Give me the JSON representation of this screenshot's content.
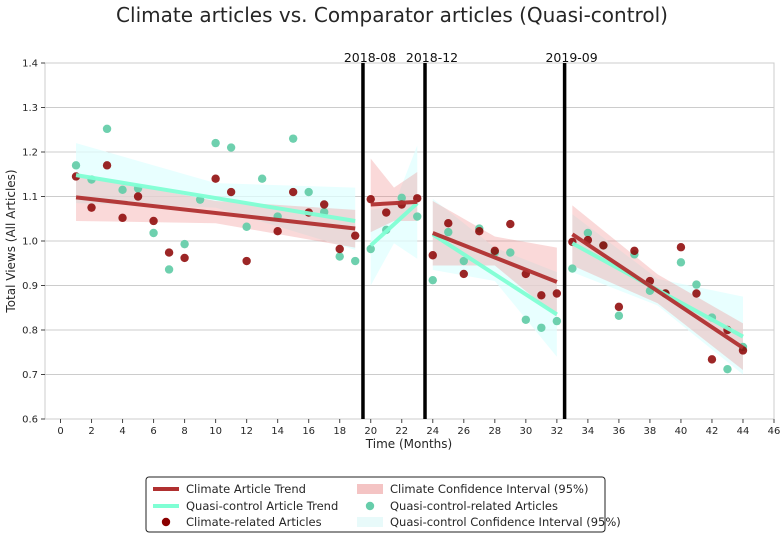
{
  "chart_data": {
    "type": "scatter",
    "title": "Climate articles vs. Comparator articles (Quasi-control)",
    "xlabel": "Time (Months)",
    "ylabel": "Total Views (All Articles)",
    "xlim": [
      -1,
      46
    ],
    "ylim": [
      0.6,
      1.4
    ],
    "xticks": [
      0,
      2,
      4,
      6,
      8,
      10,
      12,
      14,
      16,
      18,
      20,
      22,
      24,
      26,
      28,
      30,
      32,
      34,
      36,
      38,
      40,
      42,
      44,
      46
    ],
    "yticks": [
      0.6,
      0.7,
      0.8,
      0.9,
      1.0,
      1.1,
      1.2,
      1.3,
      1.4
    ],
    "ytick_labels": [
      "0.6",
      "0.7",
      "0.8",
      "0.9",
      "1.0",
      "1.1",
      "1.2",
      "1.3",
      "1.4"
    ],
    "grid": true,
    "legend_placement": "below",
    "events": [
      {
        "x": 19.5,
        "label": "2018-08"
      },
      {
        "x": 23.5,
        "label": "2018-12"
      },
      {
        "x": 32.5,
        "label": "2019-09"
      }
    ],
    "series": [
      {
        "name": "Climate-related Articles",
        "kind": "points",
        "color": "#8b0000",
        "x": [
          1,
          2,
          3,
          4,
          5,
          6,
          7,
          8,
          10,
          11,
          12,
          14,
          15,
          16,
          17,
          18,
          19,
          20,
          21,
          22,
          23,
          24,
          25,
          26,
          27,
          28,
          29,
          30,
          31,
          32,
          33,
          34,
          35,
          36,
          37,
          38,
          39,
          40,
          41,
          42,
          43,
          44
        ],
        "y": [
          1.145,
          1.075,
          1.17,
          1.052,
          1.1,
          1.045,
          0.974,
          0.962,
          1.14,
          1.11,
          0.955,
          1.022,
          1.11,
          1.064,
          1.082,
          0.982,
          1.012,
          1.094,
          1.064,
          1.082,
          1.096,
          0.968,
          1.04,
          0.926,
          1.022,
          0.978,
          1.038,
          0.926,
          0.878,
          0.882,
          0.998,
          1.002,
          0.99,
          0.852,
          0.978,
          0.91,
          0.882,
          0.986,
          0.882,
          0.734,
          0.8,
          0.754
        ]
      },
      {
        "name": "Quasi-control-related Articles",
        "kind": "points",
        "color": "#66cdaa",
        "x": [
          1,
          2,
          3,
          4,
          5,
          6,
          7,
          8,
          9,
          10,
          11,
          12,
          13,
          14,
          15,
          16,
          17,
          18,
          19,
          20,
          21,
          22,
          23,
          24,
          25,
          26,
          27,
          28,
          29,
          30,
          31,
          32,
          33,
          34,
          35,
          36,
          37,
          38,
          39,
          40,
          41,
          42,
          43,
          44
        ],
        "y": [
          1.17,
          1.138,
          1.252,
          1.115,
          1.118,
          1.018,
          0.936,
          0.993,
          1.093,
          1.22,
          1.21,
          1.032,
          1.14,
          1.055,
          1.23,
          1.11,
          1.065,
          0.965,
          0.955,
          0.982,
          1.025,
          1.097,
          1.055,
          0.912,
          1.02,
          0.955,
          1.028,
          0.974,
          0.974,
          0.823,
          0.805,
          0.82,
          0.938,
          1.018,
          0.99,
          0.832,
          0.97,
          0.888,
          0.882,
          0.952,
          0.902,
          0.828,
          0.712,
          0.762
        ]
      },
      {
        "name": "Climate Article Trend",
        "kind": "trend",
        "color": "#b03030",
        "segments": [
          {
            "x": [
              1,
              19
            ],
            "y": [
              1.098,
              1.028
            ]
          },
          {
            "x": [
              20,
              23
            ],
            "y": [
              1.082,
              1.088
            ]
          },
          {
            "x": [
              24,
              32
            ],
            "y": [
              1.018,
              0.908
            ]
          },
          {
            "x": [
              33,
              44
            ],
            "y": [
              1.015,
              0.76
            ]
          }
        ]
      },
      {
        "name": "Quasi-control Article Trend",
        "kind": "trend",
        "color": "#7fffd4",
        "segments": [
          {
            "x": [
              1,
              19
            ],
            "y": [
              1.148,
              1.045
            ]
          },
          {
            "x": [
              20,
              23
            ],
            "y": [
              0.99,
              1.085
            ]
          },
          {
            "x": [
              24,
              32
            ],
            "y": [
              1.015,
              0.835
            ]
          },
          {
            "x": [
              33,
              44
            ],
            "y": [
              0.995,
              0.785
            ]
          }
        ]
      },
      {
        "name": "Climate Confidence Interval (95%)",
        "kind": "band",
        "color": "#f08080",
        "segments": [
          {
            "x": [
              1,
              10,
              19
            ],
            "lower": [
              1.045,
              1.04,
              0.985
            ],
            "upper": [
              1.15,
              1.09,
              1.07
            ]
          },
          {
            "x": [
              20,
              21.5,
              23
            ],
            "lower": [
              1.02,
              1.045,
              1.045
            ],
            "upper": [
              1.185,
              1.12,
              1.155
            ]
          },
          {
            "x": [
              24,
              28,
              32
            ],
            "lower": [
              0.945,
              0.945,
              0.83
            ],
            "upper": [
              1.09,
              1.01,
              0.985
            ]
          },
          {
            "x": [
              33,
              38.5,
              44
            ],
            "lower": [
              0.945,
              0.86,
              0.71
            ],
            "upper": [
              1.08,
              0.925,
              0.815
            ]
          }
        ]
      },
      {
        "name": "Quasi-control Confidence Interval (95%)",
        "kind": "band",
        "color": "#e0ffff",
        "segments": [
          {
            "x": [
              1,
              10,
              19
            ],
            "lower": [
              1.085,
              1.075,
              0.98
            ],
            "upper": [
              1.22,
              1.13,
              1.12
            ]
          },
          {
            "x": [
              20,
              21.5,
              23
            ],
            "lower": [
              0.9,
              0.995,
              0.96
            ],
            "upper": [
              1.07,
              1.08,
              1.215
            ]
          },
          {
            "x": [
              24,
              28,
              32
            ],
            "lower": [
              0.935,
              0.91,
              0.74
            ],
            "upper": [
              1.095,
              0.985,
              0.93
            ]
          },
          {
            "x": [
              33,
              38.5,
              44
            ],
            "lower": [
              0.93,
              0.855,
              0.7
            ],
            "upper": [
              1.06,
              0.915,
              0.875
            ]
          }
        ]
      }
    ]
  },
  "legend": {
    "items": [
      {
        "label": "Climate Article Trend",
        "kind": "line",
        "color": "#b03030"
      },
      {
        "label": "Climate Confidence Interval (95%)",
        "kind": "patch",
        "color": "#f4c4c4"
      },
      {
        "label": "Quasi-control Article Trend",
        "kind": "line",
        "color": "#7fffd4"
      },
      {
        "label": "Quasi-control-related Articles",
        "kind": "marker",
        "color": "#66cdaa"
      },
      {
        "label": "Climate-related Articles",
        "kind": "marker",
        "color": "#8b0000"
      },
      {
        "label": "Quasi-control Confidence Interval (95%)",
        "kind": "patch",
        "color": "#e8fafa"
      }
    ]
  }
}
